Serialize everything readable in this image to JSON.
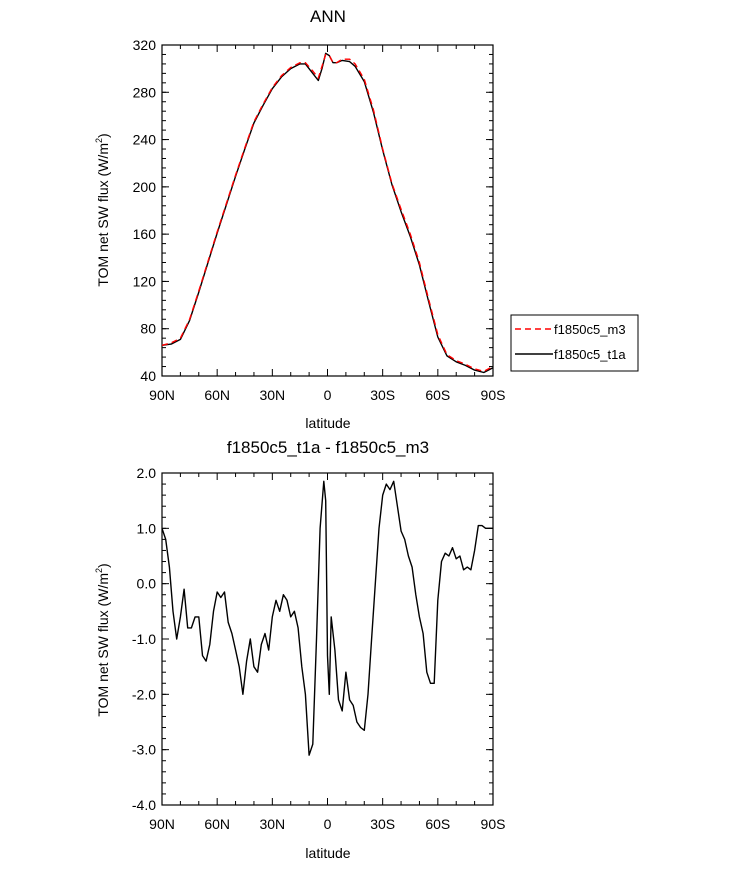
{
  "chart_data": [
    {
      "type": "line",
      "title": "ANN",
      "xlabel": "latitude",
      "ylabel": "TOM net SW flux (W/m",
      "ylabel_sup": "2",
      "ylabel_close": ")",
      "x_tick_labels": [
        "90N",
        "60N",
        "30N",
        "0",
        "30S",
        "60S",
        "90S"
      ],
      "xlim": [
        90,
        -90
      ],
      "x_ticks": [
        90,
        60,
        30,
        0,
        -30,
        -60,
        -90
      ],
      "ylim": [
        40,
        320
      ],
      "y_ticks": [
        40,
        80,
        120,
        160,
        200,
        240,
        280,
        320
      ],
      "y_tick_labels": [
        "40",
        "80",
        "120",
        "160",
        "200",
        "240",
        "280",
        "320"
      ],
      "legend": {
        "placement": "right",
        "entries": [
          {
            "label": "f1850c5_m3",
            "color": "#ff0000",
            "dash": true
          },
          {
            "label": "f1850c5_t1a",
            "color": "#000000",
            "dash": false
          }
        ]
      },
      "series": [
        {
          "name": "f1850c5_m3",
          "color": "#ff0000",
          "x": [
            90,
            85,
            80,
            75,
            70,
            65,
            60,
            55,
            50,
            45,
            40,
            35,
            30,
            25,
            20,
            15,
            12,
            8,
            5,
            3,
            1,
            -1,
            -3,
            -5,
            -8,
            -12,
            -15,
            -20,
            -25,
            -30,
            -35,
            -40,
            -45,
            -50,
            -55,
            -60,
            -65,
            -70,
            -75,
            -80,
            -85,
            -90
          ],
          "y": [
            66,
            68,
            72,
            88,
            112,
            137,
            162,
            186,
            210,
            233,
            255,
            270,
            284,
            294,
            301,
            305,
            305,
            298,
            292,
            302,
            312,
            311,
            305,
            305,
            308,
            308,
            304,
            291,
            265,
            232,
            203,
            181,
            160,
            136,
            105,
            75,
            58,
            53,
            50,
            46,
            44,
            48
          ]
        },
        {
          "name": "f1850c5_t1a",
          "color": "#000000",
          "x": [
            90,
            85,
            80,
            75,
            70,
            65,
            60,
            55,
            50,
            45,
            40,
            35,
            30,
            25,
            20,
            15,
            12,
            8,
            5,
            3,
            1,
            -1,
            -3,
            -5,
            -8,
            -12,
            -15,
            -20,
            -25,
            -30,
            -35,
            -40,
            -45,
            -50,
            -55,
            -60,
            -65,
            -70,
            -75,
            -80,
            -85,
            -90
          ],
          "y": [
            66,
            67,
            71,
            87,
            111,
            136,
            161,
            185,
            209,
            232,
            254,
            269,
            283,
            293,
            300,
            304,
            304,
            296,
            290,
            300,
            313,
            311,
            305,
            305,
            307,
            306,
            302,
            289,
            263,
            231,
            202,
            179,
            158,
            134,
            103,
            73,
            57,
            52,
            49,
            45,
            43,
            47
          ]
        }
      ]
    },
    {
      "type": "line",
      "title": "f1850c5_t1a - f1850c5_m3",
      "xlabel": "latitude",
      "ylabel": "TOM net SW flux (W/m",
      "ylabel_sup": "2",
      "ylabel_close": ")",
      "x_tick_labels": [
        "90N",
        "60N",
        "30N",
        "0",
        "30S",
        "60S",
        "90S"
      ],
      "xlim": [
        90,
        -90
      ],
      "x_ticks": [
        90,
        60,
        30,
        0,
        -30,
        -60,
        -90
      ],
      "ylim": [
        -4.0,
        2.0
      ],
      "y_ticks": [
        -4,
        -3,
        -2,
        -1,
        0,
        1,
        2
      ],
      "y_tick_labels": [
        "-4.0",
        "-3.0",
        "-2.0",
        "-1.0",
        "0.0",
        "1.0",
        "2.0"
      ],
      "series": [
        {
          "name": "f1850c5_t1a - f1850c5_m3",
          "color": "#000000",
          "x": [
            90,
            88,
            86,
            84,
            82,
            80,
            78,
            76,
            74,
            72,
            70,
            68,
            66,
            64,
            62,
            60,
            58,
            56,
            54,
            52,
            50,
            48,
            46,
            44,
            42,
            40,
            38,
            36,
            34,
            32,
            30,
            28,
            26,
            24,
            22,
            20,
            18,
            16,
            14,
            12,
            10,
            8,
            6,
            4,
            2,
            1,
            0,
            -1,
            -2,
            -4,
            -6,
            -8,
            -10,
            -12,
            -14,
            -16,
            -18,
            -20,
            -22,
            -24,
            -26,
            -28,
            -30,
            -32,
            -34,
            -36,
            -38,
            -40,
            -42,
            -44,
            -46,
            -48,
            -50,
            -52,
            -54,
            -56,
            -58,
            -60,
            -62,
            -64,
            -66,
            -68,
            -70,
            -72,
            -74,
            -76,
            -78,
            -80,
            -82,
            -84,
            -86,
            -88,
            -90
          ],
          "y": [
            1.0,
            0.8,
            0.3,
            -0.5,
            -1.0,
            -0.6,
            -0.1,
            -0.8,
            -0.8,
            -0.6,
            -0.6,
            -1.3,
            -1.4,
            -1.1,
            -0.5,
            -0.15,
            -0.25,
            -0.15,
            -0.7,
            -0.9,
            -1.2,
            -1.5,
            -2.0,
            -1.4,
            -1.0,
            -1.5,
            -1.6,
            -1.1,
            -0.9,
            -1.2,
            -0.6,
            -0.3,
            -0.5,
            -0.2,
            -0.3,
            -0.6,
            -0.5,
            -0.8,
            -1.5,
            -2.0,
            -3.1,
            -2.9,
            -1.0,
            1.0,
            1.85,
            1.5,
            -1.3,
            -2.0,
            -0.6,
            -1.2,
            -2.1,
            -2.3,
            -1.6,
            -2.1,
            -2.2,
            -2.5,
            -2.6,
            -2.65,
            -2.0,
            -1.0,
            0.0,
            1.0,
            1.6,
            1.8,
            1.7,
            1.85,
            1.4,
            0.95,
            0.8,
            0.5,
            0.3,
            -0.2,
            -0.6,
            -0.9,
            -1.6,
            -1.8,
            -1.8,
            -0.3,
            0.4,
            0.55,
            0.5,
            0.65,
            0.45,
            0.5,
            0.25,
            0.3,
            0.25,
            0.6,
            1.05,
            1.05,
            1.0,
            1.0,
            1.0
          ]
        }
      ]
    }
  ]
}
